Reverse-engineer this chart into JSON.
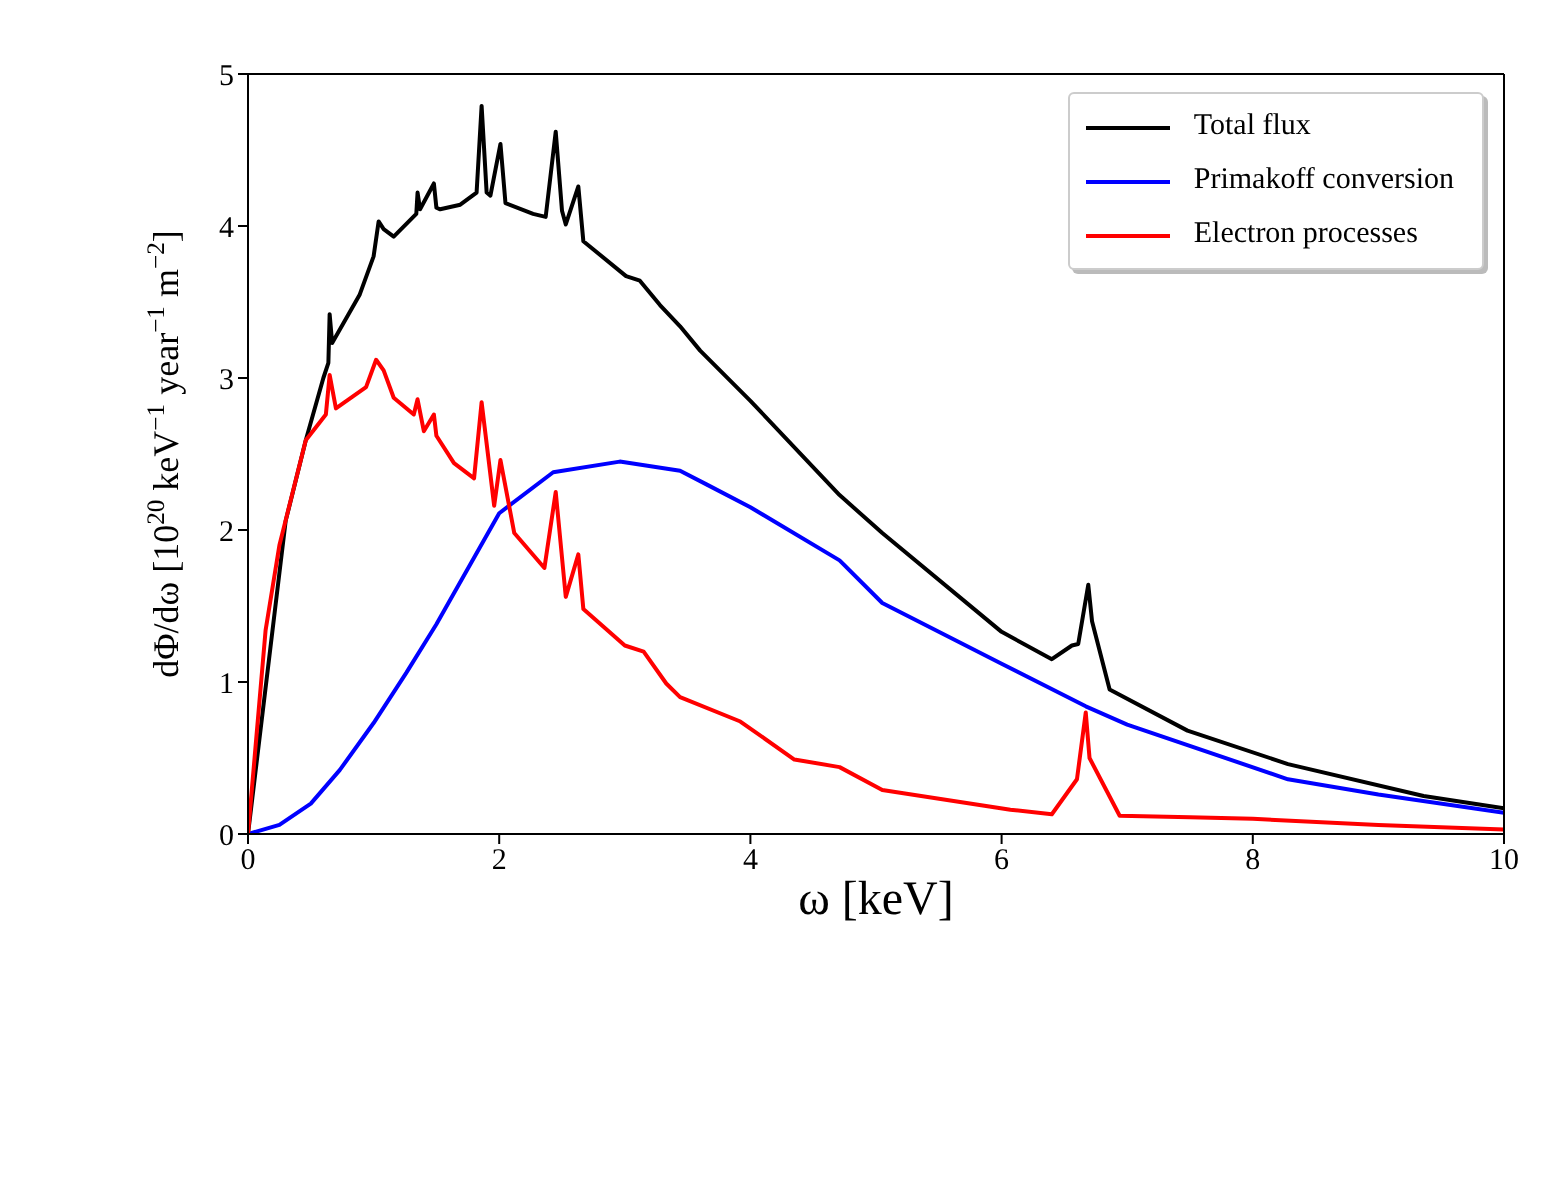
{
  "chart_data": {
    "type": "line",
    "xlabel": "ω  [keV]",
    "ylabel": "dΦ/dω  [10$^{20}$ keV$^{−1}$ year$^{−1}$ m$^{−2}$]",
    "xlim": [
      0,
      10
    ],
    "xticks": [
      0,
      2,
      4,
      6,
      8,
      10
    ],
    "ylim": [
      0,
      5
    ],
    "yticks": [
      0,
      1,
      2,
      3,
      4,
      5
    ],
    "legend": "top right",
    "marker": "none",
    "line_style": "solid",
    "series": [
      {
        "name": "Total flux",
        "color": "#000000",
        "x": [
          0,
          0.3,
          0.46,
          0.6,
          0.64,
          0.65,
          0.67,
          0.89,
          1.0,
          1.04,
          1.08,
          1.16,
          1.34,
          1.35,
          1.37,
          1.48,
          1.5,
          1.53,
          1.69,
          1.82,
          1.86,
          1.9,
          1.93,
          2.01,
          2.05,
          2.27,
          2.37,
          2.45,
          2.5,
          2.53,
          2.63,
          2.67,
          3.01,
          3.12,
          3.28,
          3.44,
          3.6,
          4.0,
          4.71,
          5.05,
          6.0,
          6.4,
          6.56,
          6.61,
          6.69,
          6.72,
          6.86,
          7.48,
          8.28,
          9.36,
          10
        ],
        "values": [
          0,
          2.06,
          2.59,
          3.0,
          3.1,
          3.42,
          3.23,
          3.55,
          3.8,
          4.03,
          3.98,
          3.93,
          4.08,
          4.22,
          4.11,
          4.28,
          4.12,
          4.11,
          4.14,
          4.22,
          4.79,
          4.22,
          4.2,
          4.54,
          4.15,
          4.08,
          4.06,
          4.62,
          4.1,
          4.01,
          4.26,
          3.9,
          3.67,
          3.64,
          3.48,
          3.34,
          3.18,
          2.85,
          2.23,
          1.98,
          1.33,
          1.15,
          1.24,
          1.25,
          1.64,
          1.4,
          0.95,
          0.68,
          0.46,
          0.25,
          0.17
        ]
      },
      {
        "name": "Primakoff conversion",
        "color": "#0000ff",
        "x": [
          0,
          0.25,
          0.5,
          0.73,
          1.0,
          1.26,
          1.5,
          2.0,
          2.43,
          2.96,
          3.44,
          3.65,
          4.0,
          4.71,
          5.05,
          6.0,
          6.67,
          7.0,
          8.28,
          9.0,
          10
        ],
        "values": [
          0,
          0.06,
          0.2,
          0.42,
          0.73,
          1.06,
          1.38,
          2.11,
          2.38,
          2.45,
          2.39,
          2.3,
          2.15,
          1.8,
          1.52,
          1.12,
          0.84,
          0.72,
          0.36,
          0.26,
          0.14
        ]
      },
      {
        "name": "Electron processes",
        "color": "#ff0000",
        "x": [
          0,
          0.14,
          0.25,
          0.46,
          0.62,
          0.65,
          0.7,
          0.94,
          1.02,
          1.08,
          1.16,
          1.32,
          1.35,
          1.4,
          1.48,
          1.5,
          1.64,
          1.8,
          1.86,
          1.96,
          2.01,
          2.12,
          2.36,
          2.45,
          2.53,
          2.63,
          2.67,
          3.0,
          3.15,
          3.33,
          3.44,
          3.92,
          4.35,
          4.71,
          5.05,
          6.07,
          6.4,
          6.6,
          6.67,
          6.7,
          6.94,
          7.5,
          8.0,
          9.0,
          10
        ],
        "values": [
          0,
          1.34,
          1.9,
          2.59,
          2.76,
          3.02,
          2.8,
          2.94,
          3.12,
          3.05,
          2.87,
          2.76,
          2.86,
          2.65,
          2.76,
          2.62,
          2.44,
          2.34,
          2.84,
          2.16,
          2.46,
          1.98,
          1.75,
          2.25,
          1.56,
          1.84,
          1.48,
          1.24,
          1.2,
          0.99,
          0.9,
          0.74,
          0.49,
          0.44,
          0.29,
          0.16,
          0.13,
          0.36,
          0.8,
          0.5,
          0.12,
          0.11,
          0.1,
          0.06,
          0.03
        ]
      }
    ]
  }
}
